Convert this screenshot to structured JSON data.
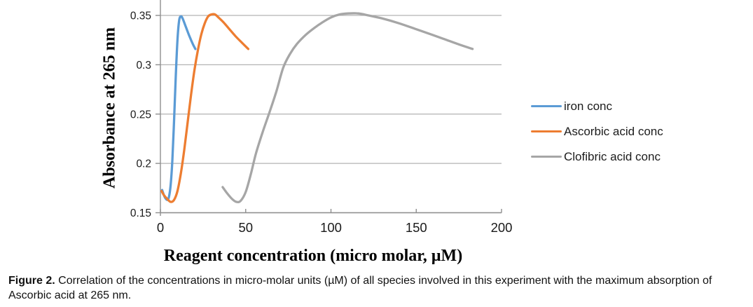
{
  "chart_data": {
    "type": "line",
    "title": "",
    "xlabel": "Reagent concentration (micro molar, µM)",
    "ylabel": "Absorbance at 265 nm",
    "xlim": [
      0,
      200
    ],
    "ylim_visible": [
      0.15,
      0.365
    ],
    "x_ticks": [
      0,
      50,
      100,
      150,
      200
    ],
    "y_ticks": [
      0.15,
      0.2,
      0.25,
      0.3,
      0.35
    ],
    "grid": "horizontal-only",
    "legend_position": "right-center",
    "axis_color": "#8f8f8f",
    "grid_color": "#b3b3b3",
    "tick_label_color": "#1a1a1a",
    "series": [
      {
        "name": "iron conc",
        "color": "#5b9bd5",
        "points": [
          [
            1,
            0.173
          ],
          [
            2.5,
            0.166
          ],
          [
            4,
            0.163
          ],
          [
            5,
            0.166
          ],
          [
            6,
            0.178
          ],
          [
            7,
            0.203
          ],
          [
            8,
            0.243
          ],
          [
            9,
            0.288
          ],
          [
            10,
            0.325
          ],
          [
            11,
            0.345
          ],
          [
            12,
            0.349
          ],
          [
            13,
            0.347
          ],
          [
            15,
            0.338
          ],
          [
            17,
            0.329
          ],
          [
            19,
            0.321
          ],
          [
            20.5,
            0.316
          ]
        ]
      },
      {
        "name": "Ascorbic acid conc",
        "color": "#ed7d31",
        "points": [
          [
            0.7,
            0.172
          ],
          [
            2,
            0.168
          ],
          [
            4,
            0.164
          ],
          [
            6,
            0.161
          ],
          [
            8,
            0.163
          ],
          [
            10,
            0.172
          ],
          [
            12,
            0.19
          ],
          [
            14,
            0.214
          ],
          [
            16,
            0.242
          ],
          [
            18,
            0.27
          ],
          [
            20,
            0.295
          ],
          [
            22,
            0.315
          ],
          [
            24,
            0.331
          ],
          [
            26,
            0.342
          ],
          [
            28,
            0.349
          ],
          [
            30,
            0.351
          ],
          [
            32,
            0.351
          ],
          [
            34,
            0.348
          ],
          [
            37,
            0.343
          ],
          [
            40,
            0.337
          ],
          [
            44,
            0.329
          ],
          [
            48,
            0.322
          ],
          [
            51.5,
            0.316
          ]
        ]
      },
      {
        "name": "Clofibric acid conc",
        "color": "#a6a6a6",
        "points": [
          [
            36.5,
            0.176
          ],
          [
            39,
            0.17
          ],
          [
            42,
            0.164
          ],
          [
            44.5,
            0.161
          ],
          [
            47,
            0.162
          ],
          [
            50,
            0.171
          ],
          [
            53,
            0.189
          ],
          [
            56,
            0.21
          ],
          [
            60,
            0.232
          ],
          [
            64,
            0.252
          ],
          [
            68,
            0.273
          ],
          [
            72,
            0.297
          ],
          [
            76,
            0.311
          ],
          [
            80,
            0.321
          ],
          [
            85,
            0.33
          ],
          [
            90,
            0.337
          ],
          [
            95,
            0.343
          ],
          [
            100,
            0.348
          ],
          [
            105,
            0.351
          ],
          [
            110,
            0.352
          ],
          [
            116,
            0.352
          ],
          [
            122,
            0.35
          ],
          [
            130,
            0.347
          ],
          [
            140,
            0.342
          ],
          [
            150,
            0.336
          ],
          [
            160,
            0.33
          ],
          [
            168,
            0.325
          ],
          [
            176,
            0.32
          ],
          [
            183,
            0.316
          ]
        ]
      }
    ]
  },
  "figure": {
    "caption_label": "Figure 2.",
    "caption_text": "Correlation of the concentrations in micro-molar units (µM) of all species involved in this experiment with the maximum absorption of Ascorbic acid at 265 nm."
  }
}
